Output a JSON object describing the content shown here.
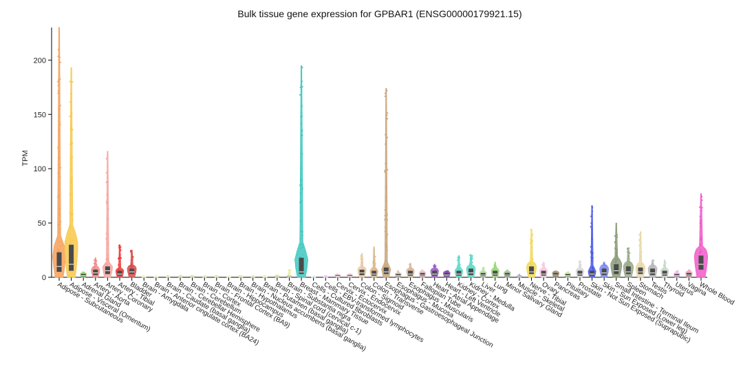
{
  "chart_data": {
    "type": "violin",
    "title": "Bulk tissue gene expression for GPBAR1 (ENSG00000179921.15)",
    "xlabel": "",
    "ylabel": "TPM",
    "ylim": [
      0,
      230
    ],
    "yticks": [
      0,
      50,
      100,
      150,
      200
    ],
    "grid": false,
    "tissues": [
      {
        "name": "Adipose - Subcutaneous",
        "color": "#f5a05a",
        "median": 10,
        "q1": 5,
        "q3": 23,
        "max": 230
      },
      {
        "name": "Adipose - Visceral (Omentum)",
        "color": "#f7c84a",
        "median": 12,
        "q1": 6,
        "q3": 30,
        "max": 193
      },
      {
        "name": "Adrenal Gland",
        "color": "#8fd46a",
        "median": 1.5,
        "q1": 0.8,
        "q3": 3,
        "max": 5
      },
      {
        "name": "Artery - Aorta",
        "color": "#f28a8a",
        "median": 4,
        "q1": 2,
        "q3": 7,
        "max": 18
      },
      {
        "name": "Artery - Coronary",
        "color": "#f4a6a0",
        "median": 6,
        "q1": 3,
        "q3": 10,
        "max": 116
      },
      {
        "name": "Artery - Tibial",
        "color": "#ee3a3a",
        "median": 3,
        "q1": 1.5,
        "q3": 6,
        "max": 30
      },
      {
        "name": "Bladder",
        "color": "#d94a4a",
        "median": 5,
        "q1": 3,
        "q3": 8,
        "max": 25
      },
      {
        "name": "Brain - Amygdala",
        "color": "#eaea9a",
        "median": 0.3,
        "q1": 0.1,
        "q3": 0.6,
        "max": 1.2
      },
      {
        "name": "Brain - Anterior cingulate cortex (BA24)",
        "color": "#eaea9a",
        "median": 0.3,
        "q1": 0.1,
        "q3": 0.6,
        "max": 1.2
      },
      {
        "name": "Brain - Caudate (basal ganglia)",
        "color": "#eaea9a",
        "median": 0.4,
        "q1": 0.1,
        "q3": 0.7,
        "max": 1.5
      },
      {
        "name": "Brain - Cerebellar Hemisphere",
        "color": "#eaea9a",
        "median": 0.5,
        "q1": 0.2,
        "q3": 0.9,
        "max": 1.8
      },
      {
        "name": "Brain - Cerebellum",
        "color": "#eaea9a",
        "median": 0.5,
        "q1": 0.2,
        "q3": 0.9,
        "max": 1.8
      },
      {
        "name": "Brain - Cortex",
        "color": "#eaea9a",
        "median": 0.4,
        "q1": 0.1,
        "q3": 0.7,
        "max": 1.5
      },
      {
        "name": "Brain - Frontal Cortex (BA9)",
        "color": "#eaea9a",
        "median": 0.4,
        "q1": 0.1,
        "q3": 0.7,
        "max": 1.5
      },
      {
        "name": "Brain - Hippocampus",
        "color": "#eaea9a",
        "median": 0.3,
        "q1": 0.1,
        "q3": 0.6,
        "max": 1.3
      },
      {
        "name": "Brain - Hypothalamus",
        "color": "#eaea9a",
        "median": 0.4,
        "q1": 0.1,
        "q3": 0.7,
        "max": 1.5
      },
      {
        "name": "Brain - Nucleus accumbens (basal ganglia)",
        "color": "#eaea9a",
        "median": 0.4,
        "q1": 0.1,
        "q3": 0.7,
        "max": 1.5
      },
      {
        "name": "Brain - Putamen (basal ganglia)",
        "color": "#eaea9a",
        "median": 0.3,
        "q1": 0.1,
        "q3": 0.6,
        "max": 1.3
      },
      {
        "name": "Brain - Spinal cord (cervical c-1)",
        "color": "#eaea9a",
        "median": 0.5,
        "q1": 0.2,
        "q3": 1,
        "max": 2
      },
      {
        "name": "Brain - Substantia nigra",
        "color": "#eaea9a",
        "median": 0.6,
        "q1": 0.2,
        "q3": 1.2,
        "max": 7
      },
      {
        "name": "Breast - Mammary Tissue",
        "color": "#3fc7c0",
        "median": 5,
        "q1": 3,
        "q3": 18,
        "max": 195
      },
      {
        "name": "Cells - Cultured fibroblasts",
        "color": "#a9d6f0",
        "median": 0.2,
        "q1": 0.1,
        "q3": 0.4,
        "max": 0.8
      },
      {
        "name": "Cells - EBV-transformed lymphocytes",
        "color": "#e89ef0",
        "median": 0.2,
        "q1": 0.1,
        "q3": 0.4,
        "max": 1
      },
      {
        "name": "Cervix - Ectocervix",
        "color": "#f5d0e0",
        "median": 1,
        "q1": 0.5,
        "q3": 2,
        "max": 3
      },
      {
        "name": "Cervix - Endocervix",
        "color": "#f0c0d8",
        "median": 1,
        "q1": 0.5,
        "q3": 2,
        "max": 3
      },
      {
        "name": "Colon - Sigmoid",
        "color": "#e8c9a0",
        "median": 4,
        "q1": 2,
        "q3": 7,
        "max": 22
      },
      {
        "name": "Colon - Transverse",
        "color": "#d9b88a",
        "median": 3,
        "q1": 1.5,
        "q3": 6,
        "max": 28
      },
      {
        "name": "Esophagus - Gastroesophageal Junction",
        "color": "#c9a57a",
        "median": 5,
        "q1": 3,
        "q3": 9,
        "max": 174
      },
      {
        "name": "Esophagus - Mucosa",
        "color": "#d8c8b8",
        "median": 1.5,
        "q1": 0.8,
        "q3": 3,
        "max": 6
      },
      {
        "name": "Esophagus - Muscularis",
        "color": "#d8b89a",
        "median": 3,
        "q1": 1.5,
        "q3": 6,
        "max": 13
      },
      {
        "name": "Fallopian Tube",
        "color": "#f5c0d0",
        "median": 2,
        "q1": 1,
        "q3": 4,
        "max": 7
      },
      {
        "name": "Heart - Atrial Appendage",
        "color": "#9a5ac8",
        "median": 3,
        "q1": 1.5,
        "q3": 6,
        "max": 12
      },
      {
        "name": "Heart - Left Ventricle",
        "color": "#8a4ab8",
        "median": 2,
        "q1": 1,
        "q3": 4,
        "max": 6
      },
      {
        "name": "Kidney - Cortex",
        "color": "#5ad8c8",
        "median": 3,
        "q1": 1.5,
        "q3": 6,
        "max": 20
      },
      {
        "name": "Kidney - Medulla",
        "color": "#5ad8c8",
        "median": 4,
        "q1": 2,
        "q3": 8,
        "max": 21
      },
      {
        "name": "Liver",
        "color": "#b8e0a8",
        "median": 2,
        "q1": 1,
        "q3": 4,
        "max": 9
      },
      {
        "name": "Lung",
        "color": "#98d878",
        "median": 3,
        "q1": 1.5,
        "q3": 6,
        "max": 14
      },
      {
        "name": "Minor Salivary Gland",
        "color": "#a8c8a0",
        "median": 2,
        "q1": 1,
        "q3": 4,
        "max": 7
      },
      {
        "name": "Muscle - Skeletal",
        "color": "#a8a8e8",
        "median": 0.5,
        "q1": 0.2,
        "q3": 1,
        "max": 3
      },
      {
        "name": "Nerve - Tibial",
        "color": "#f2d85a",
        "median": 5,
        "q1": 3,
        "q3": 10,
        "max": 44
      },
      {
        "name": "Ovary",
        "color": "#f8c8e0",
        "median": 3,
        "q1": 1.5,
        "q3": 6,
        "max": 14
      },
      {
        "name": "Pancreas",
        "color": "#a89a78",
        "median": 2,
        "q1": 1,
        "q3": 4,
        "max": 6
      },
      {
        "name": "Pituitary",
        "color": "#c8e8a8",
        "median": 1.5,
        "q1": 0.8,
        "q3": 3,
        "max": 5
      },
      {
        "name": "Prostate",
        "color": "#d8d8d8",
        "median": 3,
        "q1": 1.5,
        "q3": 6,
        "max": 15
      },
      {
        "name": "Skin - Not Sun Exposed (Suprapubic)",
        "color": "#4a5ae8",
        "median": 3,
        "q1": 1.5,
        "q3": 6,
        "max": 66
      },
      {
        "name": "Skin - Sun Exposed (Lower leg)",
        "color": "#7a8af0",
        "median": 4,
        "q1": 2,
        "q3": 8,
        "max": 14
      },
      {
        "name": "Small Intestine - Terminal Ileum",
        "color": "#8a9a78",
        "median": 6,
        "q1": 3,
        "q3": 12,
        "max": 50
      },
      {
        "name": "Spleen",
        "color": "#98a888",
        "median": 5,
        "q1": 3,
        "q3": 10,
        "max": 27
      },
      {
        "name": "Stomach",
        "color": "#e8d8a8",
        "median": 5,
        "q1": 3,
        "q3": 9,
        "max": 42
      },
      {
        "name": "Testis",
        "color": "#b8b8b8",
        "median": 4,
        "q1": 2,
        "q3": 8,
        "max": 16
      },
      {
        "name": "Thyroid",
        "color": "#c8d8c8",
        "median": 3,
        "q1": 1.5,
        "q3": 6,
        "max": 16
      },
      {
        "name": "Uterus",
        "color": "#f0b8e8",
        "median": 1.5,
        "q1": 0.8,
        "q3": 3,
        "max": 6
      },
      {
        "name": "Vagina",
        "color": "#f0a8c0",
        "median": 2,
        "q1": 1,
        "q3": 4,
        "max": 7
      },
      {
        "name": "Whole Blood",
        "color": "#f05ac8",
        "median": 12,
        "q1": 7,
        "q3": 20,
        "max": 77
      }
    ]
  }
}
